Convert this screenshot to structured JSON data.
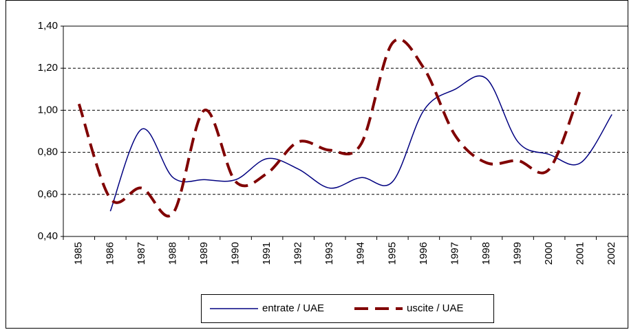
{
  "chart_data": {
    "type": "line",
    "categories": [
      "1985",
      "1986",
      "1987",
      "1988",
      "1989",
      "1990",
      "1991",
      "1992",
      "1993",
      "1994",
      "1995",
      "1996",
      "1997",
      "1998",
      "1999",
      "2000",
      "2001",
      "2002"
    ],
    "series": [
      {
        "name": "entrate / UAE",
        "color": "#000080",
        "values": [
          null,
          0.52,
          0.91,
          0.68,
          0.67,
          0.67,
          0.77,
          0.72,
          0.63,
          0.68,
          0.66,
          1.0,
          1.1,
          1.15,
          0.85,
          0.79,
          0.75,
          0.98
        ]
      },
      {
        "name": "uscite / UAE",
        "color": "#800000",
        "values": [
          1.03,
          0.58,
          0.63,
          0.51,
          1.0,
          0.66,
          0.7,
          0.85,
          0.81,
          0.84,
          1.32,
          1.2,
          0.88,
          0.75,
          0.76,
          0.72,
          1.1,
          null
        ]
      }
    ],
    "ylim": [
      0.4,
      1.4
    ],
    "yticks": [
      {
        "value": 0.4,
        "label": "0,40"
      },
      {
        "value": 0.6,
        "label": "0,60"
      },
      {
        "value": 0.8,
        "label": "0,80"
      },
      {
        "value": 1.0,
        "label": "1,00"
      },
      {
        "value": 1.2,
        "label": "1,20"
      },
      {
        "value": 1.4,
        "label": "1,40"
      }
    ],
    "grid": true,
    "legend": "bottom"
  }
}
